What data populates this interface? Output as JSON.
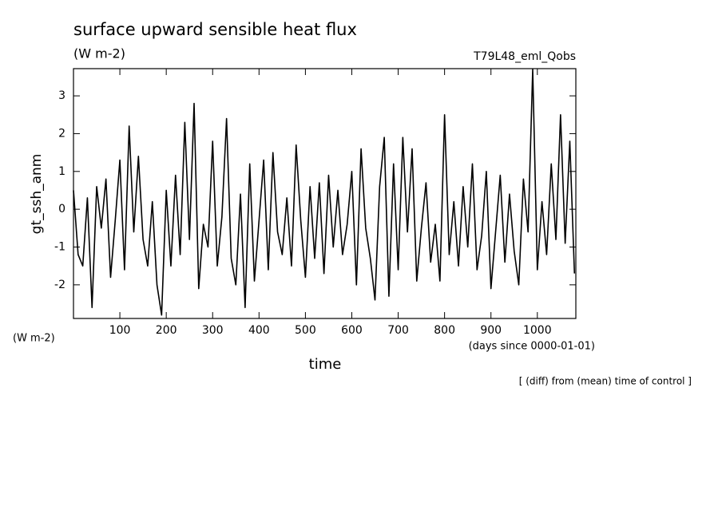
{
  "chart_data": {
    "type": "line",
    "title": "surface upward sensible heat flux",
    "subtitle": "(W m-2)",
    "run_label": "T79L48_eml_Qobs",
    "y_label": "gt_ssh_anm",
    "y_units": "(W m-2)",
    "x_label": "time",
    "x_units": "(days since 0000-01-01)",
    "note": "[ (diff) from (mean) time of control ]",
    "xlim": [
      0,
      1083
    ],
    "ylim": [
      -2.89,
      3.72
    ],
    "xticks": [
      100,
      200,
      300,
      400,
      500,
      600,
      700,
      800,
      900,
      1000
    ],
    "yticks": [
      -2,
      -1,
      0,
      1,
      2,
      3
    ],
    "x": [
      0,
      10,
      20,
      30,
      40,
      50,
      60,
      70,
      80,
      90,
      100,
      110,
      120,
      130,
      140,
      150,
      160,
      170,
      180,
      190,
      200,
      210,
      220,
      230,
      240,
      250,
      260,
      270,
      280,
      290,
      300,
      310,
      320,
      330,
      340,
      350,
      360,
      370,
      380,
      390,
      400,
      410,
      420,
      430,
      440,
      450,
      460,
      470,
      480,
      490,
      500,
      510,
      520,
      530,
      540,
      550,
      560,
      570,
      580,
      590,
      600,
      610,
      620,
      630,
      640,
      650,
      660,
      670,
      680,
      690,
      700,
      710,
      720,
      730,
      740,
      750,
      760,
      770,
      780,
      790,
      800,
      810,
      820,
      830,
      840,
      850,
      860,
      870,
      880,
      890,
      900,
      910,
      920,
      930,
      940,
      950,
      960,
      970,
      980,
      990,
      1000,
      1010,
      1020,
      1030,
      1040,
      1050,
      1060,
      1070,
      1080
    ],
    "series": [
      {
        "name": "gt_ssh_anm",
        "color": "#000000",
        "values": [
          0.5,
          -1.2,
          -1.5,
          0.3,
          -2.6,
          0.6,
          -0.5,
          0.8,
          -1.8,
          -0.3,
          1.3,
          -1.6,
          2.2,
          -0.6,
          1.4,
          -0.8,
          -1.5,
          0.2,
          -2.0,
          -2.8,
          0.5,
          -1.5,
          0.9,
          -1.2,
          2.3,
          -0.8,
          2.8,
          -2.1,
          -0.4,
          -1.0,
          1.8,
          -1.5,
          -0.2,
          2.4,
          -1.3,
          -2.0,
          0.4,
          -2.6,
          1.2,
          -1.9,
          -0.3,
          1.3,
          -1.6,
          1.5,
          -0.6,
          -1.2,
          0.3,
          -1.5,
          1.7,
          -0.3,
          -1.8,
          0.6,
          -1.3,
          0.7,
          -1.7,
          0.9,
          -1.0,
          0.5,
          -1.2,
          -0.4,
          1.0,
          -2.0,
          1.6,
          -0.5,
          -1.3,
          -2.4,
          0.6,
          1.9,
          -2.3,
          1.2,
          -1.6,
          1.9,
          -0.6,
          1.6,
          -1.9,
          -0.5,
          0.7,
          -1.4,
          -0.4,
          -1.9,
          2.5,
          -1.2,
          0.2,
          -1.5,
          0.6,
          -1.0,
          1.2,
          -1.6,
          -0.7,
          1.0,
          -2.1,
          -0.6,
          0.9,
          -1.4,
          0.4,
          -1.1,
          -2.0,
          0.8,
          -0.6,
          3.7,
          -1.6,
          0.2,
          -1.2,
          1.2,
          -0.8,
          2.5,
          -0.9,
          1.8,
          -1.7
        ]
      }
    ]
  }
}
